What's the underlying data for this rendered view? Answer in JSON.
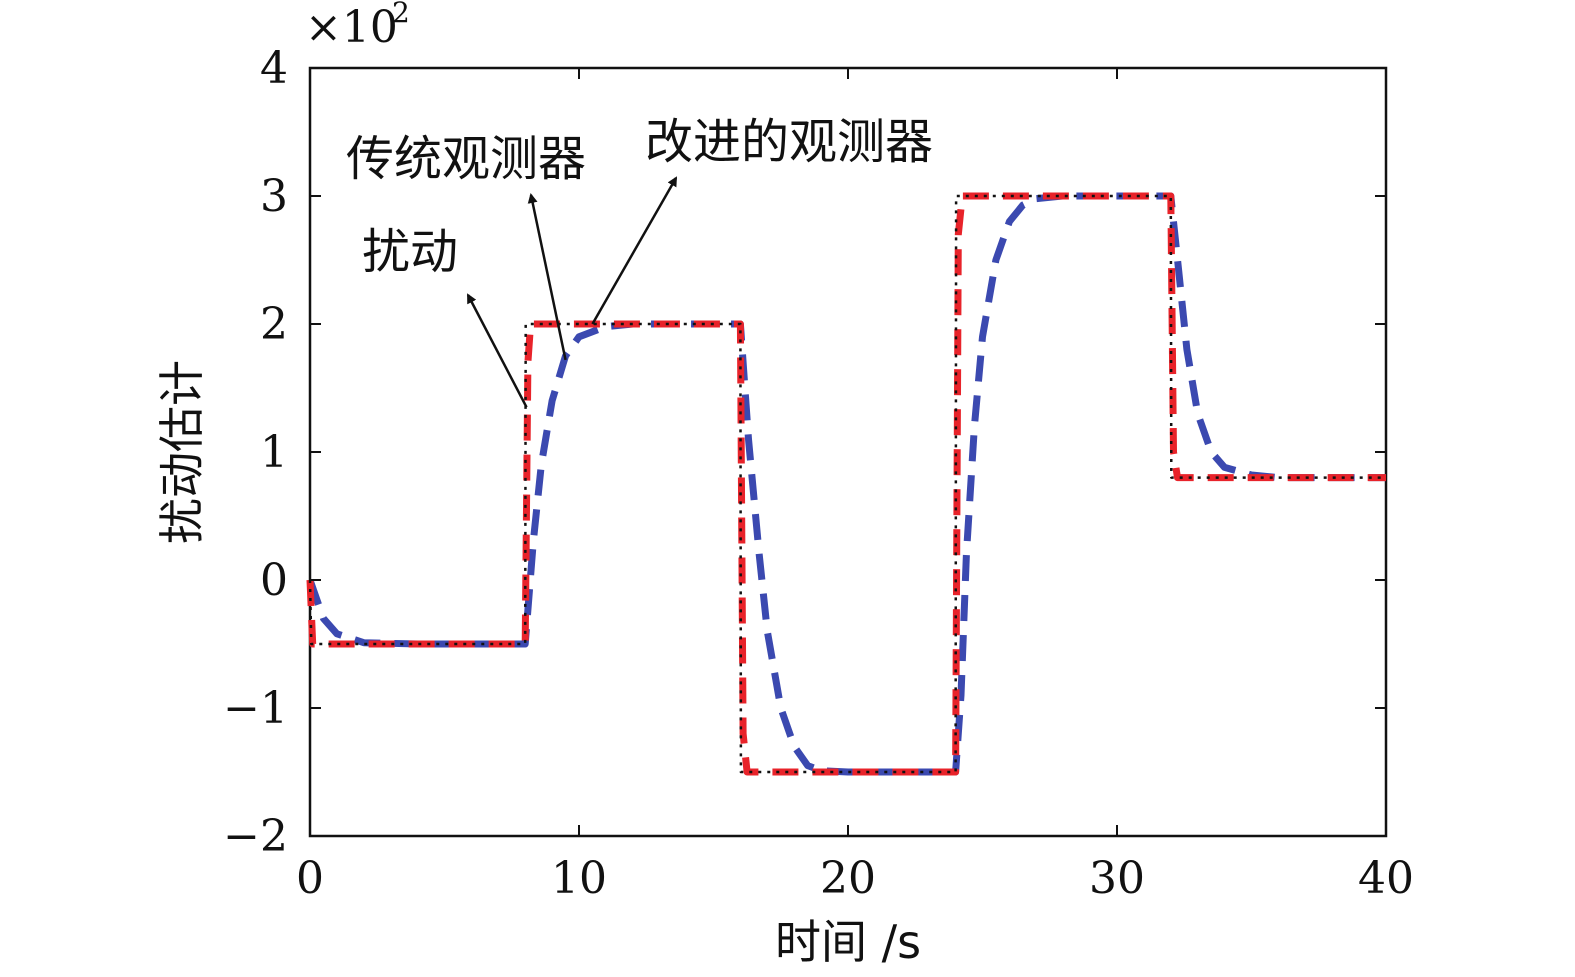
{
  "chart_data": {
    "type": "line",
    "title": "",
    "xlabel": "时间 /s",
    "ylabel": "扰动估计",
    "y_multiplier": {
      "base": "×10",
      "exponent": "2"
    },
    "xlim": [
      0,
      40
    ],
    "ylim": [
      -2,
      4
    ],
    "xticks": [
      0,
      10,
      20,
      30,
      40
    ],
    "yticks": [
      -2,
      -1,
      0,
      1,
      2,
      3,
      4
    ],
    "ytick_labels": [
      "−2",
      "−1",
      "0",
      "1",
      "2",
      "3",
      "4"
    ],
    "grid": false,
    "series": [
      {
        "name": "扰动",
        "color": "#111111",
        "style": "dotted",
        "x": [
          0,
          0.05,
          8.0,
          8.02,
          16.0,
          16.02,
          24.0,
          24.02,
          32.0,
          32.02,
          40
        ],
        "y": [
          0,
          -0.5,
          -0.5,
          2.0,
          2.0,
          -1.5,
          -1.5,
          3.0,
          3.0,
          0.8,
          0.8
        ]
      },
      {
        "name": "传统观测器",
        "color": "#3b49b0",
        "style": "dashed",
        "x": [
          0,
          0.5,
          1.0,
          2.0,
          4.0,
          8.0,
          8.3,
          8.6,
          9.0,
          9.5,
          10.0,
          11.0,
          12.0,
          16.0,
          16.3,
          16.7,
          17.0,
          17.5,
          18.0,
          18.5,
          19.0,
          20.0,
          24.0,
          24.2,
          24.4,
          24.7,
          25.0,
          25.5,
          26.0,
          26.5,
          27.0,
          28.0,
          32.0,
          32.3,
          32.6,
          33.0,
          33.5,
          34.0,
          35.0,
          36.0,
          40
        ],
        "y": [
          0,
          -0.3,
          -0.42,
          -0.49,
          -0.5,
          -0.5,
          0.3,
          0.9,
          1.4,
          1.75,
          1.9,
          1.98,
          2.0,
          2.0,
          1.1,
          0.2,
          -0.4,
          -1.0,
          -1.3,
          -1.45,
          -1.49,
          -1.5,
          -1.5,
          -0.9,
          0.2,
          1.2,
          1.9,
          2.5,
          2.8,
          2.93,
          2.98,
          3.0,
          3.0,
          2.4,
          1.8,
          1.3,
          1.0,
          0.88,
          0.82,
          0.8,
          0.8
        ]
      },
      {
        "name": "改进的观测器",
        "color": "#e8232a",
        "style": "dashed",
        "x": [
          0,
          0.1,
          8.0,
          8.1,
          8.2,
          16.0,
          16.1,
          16.25,
          24.0,
          24.1,
          24.25,
          32.0,
          32.1,
          32.25,
          40
        ],
        "y": [
          0,
          -0.5,
          -0.5,
          1.7,
          2.0,
          2.0,
          -1.2,
          -1.5,
          -1.5,
          2.7,
          3.0,
          3.0,
          1.0,
          0.8,
          0.8
        ]
      }
    ],
    "annotations": [
      {
        "text": "扰动",
        "point_at": [
          8.05,
          1.35
        ]
      },
      {
        "text": "传统观测器",
        "point_at": [
          9.5,
          1.72
        ]
      },
      {
        "text": "改进的观测器",
        "point_at": [
          10.5,
          2.0
        ]
      }
    ]
  }
}
